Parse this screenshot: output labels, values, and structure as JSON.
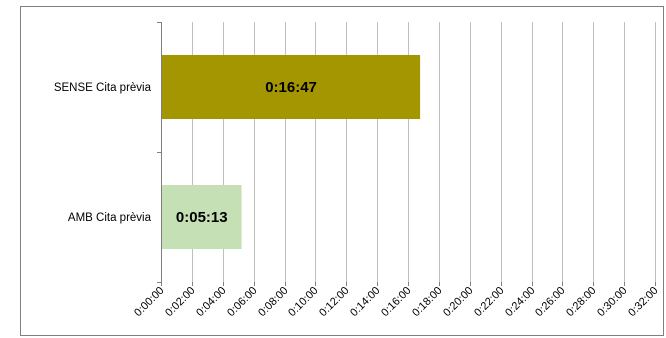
{
  "chart_data": {
    "type": "bar",
    "orientation": "horizontal",
    "categories": [
      "SENSE Cita prèvia",
      "AMB Cita prèvia"
    ],
    "values_seconds": [
      1007,
      313
    ],
    "value_labels": [
      "0:16:47",
      "0:05:13"
    ],
    "bar_colors": [
      "#a39600",
      "#c5e0b4"
    ],
    "xlim_seconds": [
      0,
      1920
    ],
    "x_tick_step_seconds": 120,
    "x_tick_labels": [
      "0:00:00",
      "0:02:00",
      "0:04:00",
      "0:06:00",
      "0:08:00",
      "0:10:00",
      "0:12:00",
      "0:14:00",
      "0:16:00",
      "0:18:00",
      "0:20:00",
      "0:22:00",
      "0:24:00",
      "0:26:00",
      "0:28:00",
      "0:30:00",
      "0:32:00"
    ],
    "grid": "vertical",
    "grid_color": "#bfbfbf",
    "title": "",
    "xlabel": "",
    "ylabel": ""
  }
}
